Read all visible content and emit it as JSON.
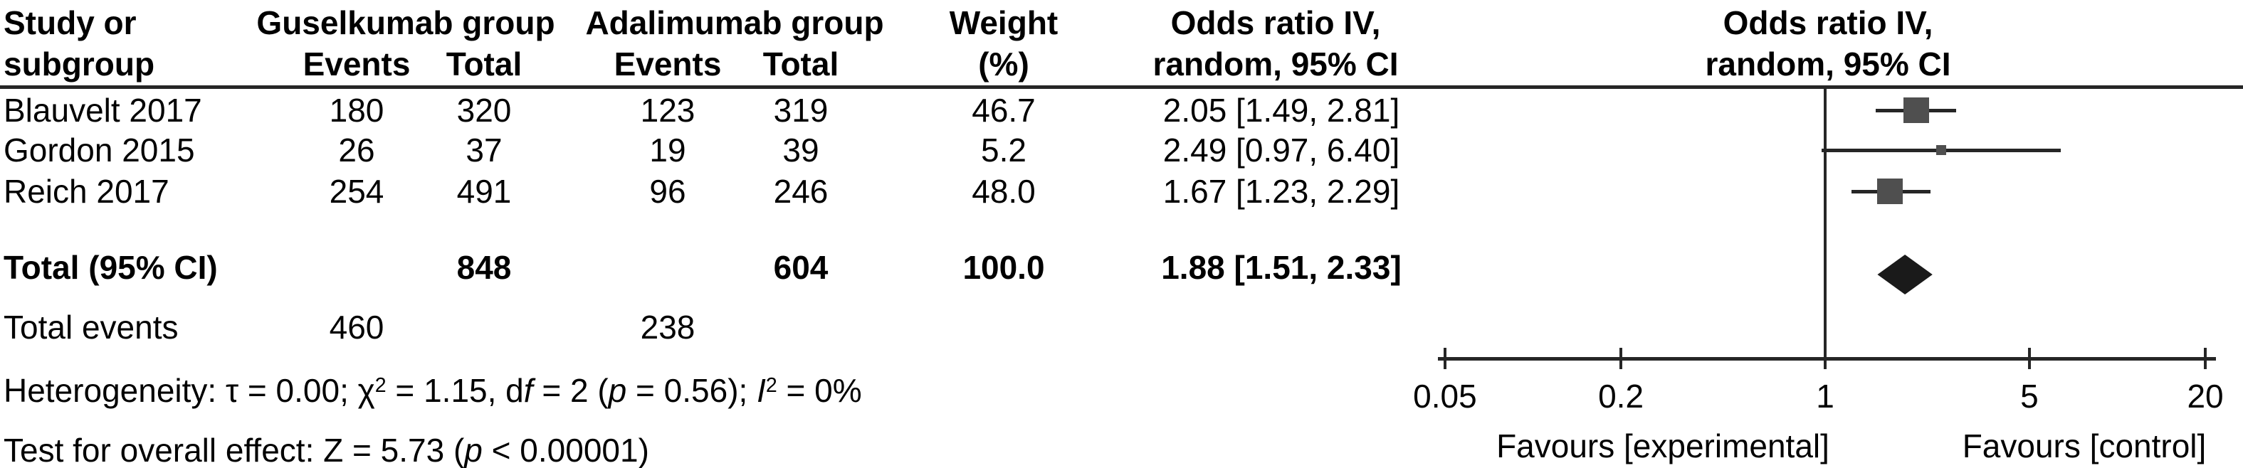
{
  "colors": {
    "text": "#000000",
    "line": "#262626",
    "square": "#4f4f4f",
    "diamond": "#1a1a1a"
  },
  "table": {
    "headers": {
      "study_line1": "Study or",
      "study_line2": "subgroup",
      "group1": "Guselkumab group",
      "group2": "Adalimumab group",
      "events": "Events",
      "total": "Total",
      "weight_line1": "Weight",
      "weight_line2": "(%)",
      "or_line1": "Odds ratio IV,",
      "or_line2": "random, 95% CI"
    },
    "rows": [
      {
        "study": "Blauvelt 2017",
        "g_events": "180",
        "g_total": "320",
        "a_events": "123",
        "a_total": "319",
        "weight": "46.7",
        "or_ci": "2.05 [1.49, 2.81]"
      },
      {
        "study": "Gordon 2015",
        "g_events": "26",
        "g_total": "37",
        "a_events": "19",
        "a_total": "39",
        "weight": "5.2",
        "or_ci": "2.49 [0.97, 6.40]"
      },
      {
        "study": "Reich 2017",
        "g_events": "254",
        "g_total": "491",
        "a_events": "96",
        "a_total": "246",
        "weight": "48.0",
        "or_ci": "1.67 [1.23, 2.29]"
      }
    ],
    "total_row": {
      "label": "Total (95% CI)",
      "g_total": "848",
      "a_total": "604",
      "weight": "100.0",
      "or_ci": "1.88 [1.51, 2.33]"
    },
    "total_events_row": {
      "label": "Total events",
      "g_events": "460",
      "a_events": "238"
    }
  },
  "footnotes": {
    "heterogeneity_segments": [
      {
        "t": "Heterogeneity: τ = 0.00; χ"
      },
      {
        "t": "2",
        "sup": true
      },
      {
        "t": " = 1.15, d"
      },
      {
        "t": "f",
        "i": true
      },
      {
        "t": " = 2 ("
      },
      {
        "t": "p",
        "i": true
      },
      {
        "t": " = 0.56); "
      },
      {
        "t": "I",
        "i": true
      },
      {
        "t": "2",
        "sup": true
      },
      {
        "t": " = 0%"
      }
    ],
    "test_segments": [
      {
        "t": "Test for overall effect: Z = 5.73 ("
      },
      {
        "t": "p",
        "i": true
      },
      {
        "t": " < 0.00001)"
      }
    ]
  },
  "plot": {
    "tick_labels": [
      "0.05",
      "0.2",
      "1",
      "5",
      "20"
    ],
    "favours_left": "Favours [experimental]",
    "favours_right": "Favours [control]"
  },
  "chart_data": {
    "type": "forest",
    "x_scale": "log",
    "x_range": [
      0.05,
      20
    ],
    "x_ticks": [
      0.05,
      0.2,
      1,
      5,
      20
    ],
    "null_line": 1,
    "effect_measure": "Odds ratio IV, random, 95% CI",
    "xlabel_left": "Favours [experimental]",
    "xlabel_right": "Favours [control]",
    "studies": [
      {
        "name": "Blauvelt 2017",
        "events_exp": 180,
        "total_exp": 320,
        "events_ctl": 123,
        "total_ctl": 319,
        "weight_pct": 46.7,
        "or": 2.05,
        "ci_low": 1.49,
        "ci_high": 2.81
      },
      {
        "name": "Gordon 2015",
        "events_exp": 26,
        "total_exp": 37,
        "events_ctl": 19,
        "total_ctl": 39,
        "weight_pct": 5.2,
        "or": 2.49,
        "ci_low": 0.97,
        "ci_high": 6.4
      },
      {
        "name": "Reich 2017",
        "events_exp": 254,
        "total_exp": 491,
        "events_ctl": 96,
        "total_ctl": 246,
        "weight_pct": 48.0,
        "or": 1.67,
        "ci_low": 1.23,
        "ci_high": 2.29
      }
    ],
    "total": {
      "label": "Total (95% CI)",
      "total_exp": 848,
      "total_ctl": 604,
      "weight_pct": 100.0,
      "or": 1.88,
      "ci_low": 1.51,
      "ci_high": 2.33,
      "total_events_exp": 460,
      "total_events_ctl": 238
    },
    "heterogeneity": "Heterogeneity: τ = 0.00; χ2 = 1.15, df = 2 (p = 0.56); I2 = 0%",
    "overall_effect": "Test for overall effect: Z = 5.73 (p < 0.00001)"
  }
}
